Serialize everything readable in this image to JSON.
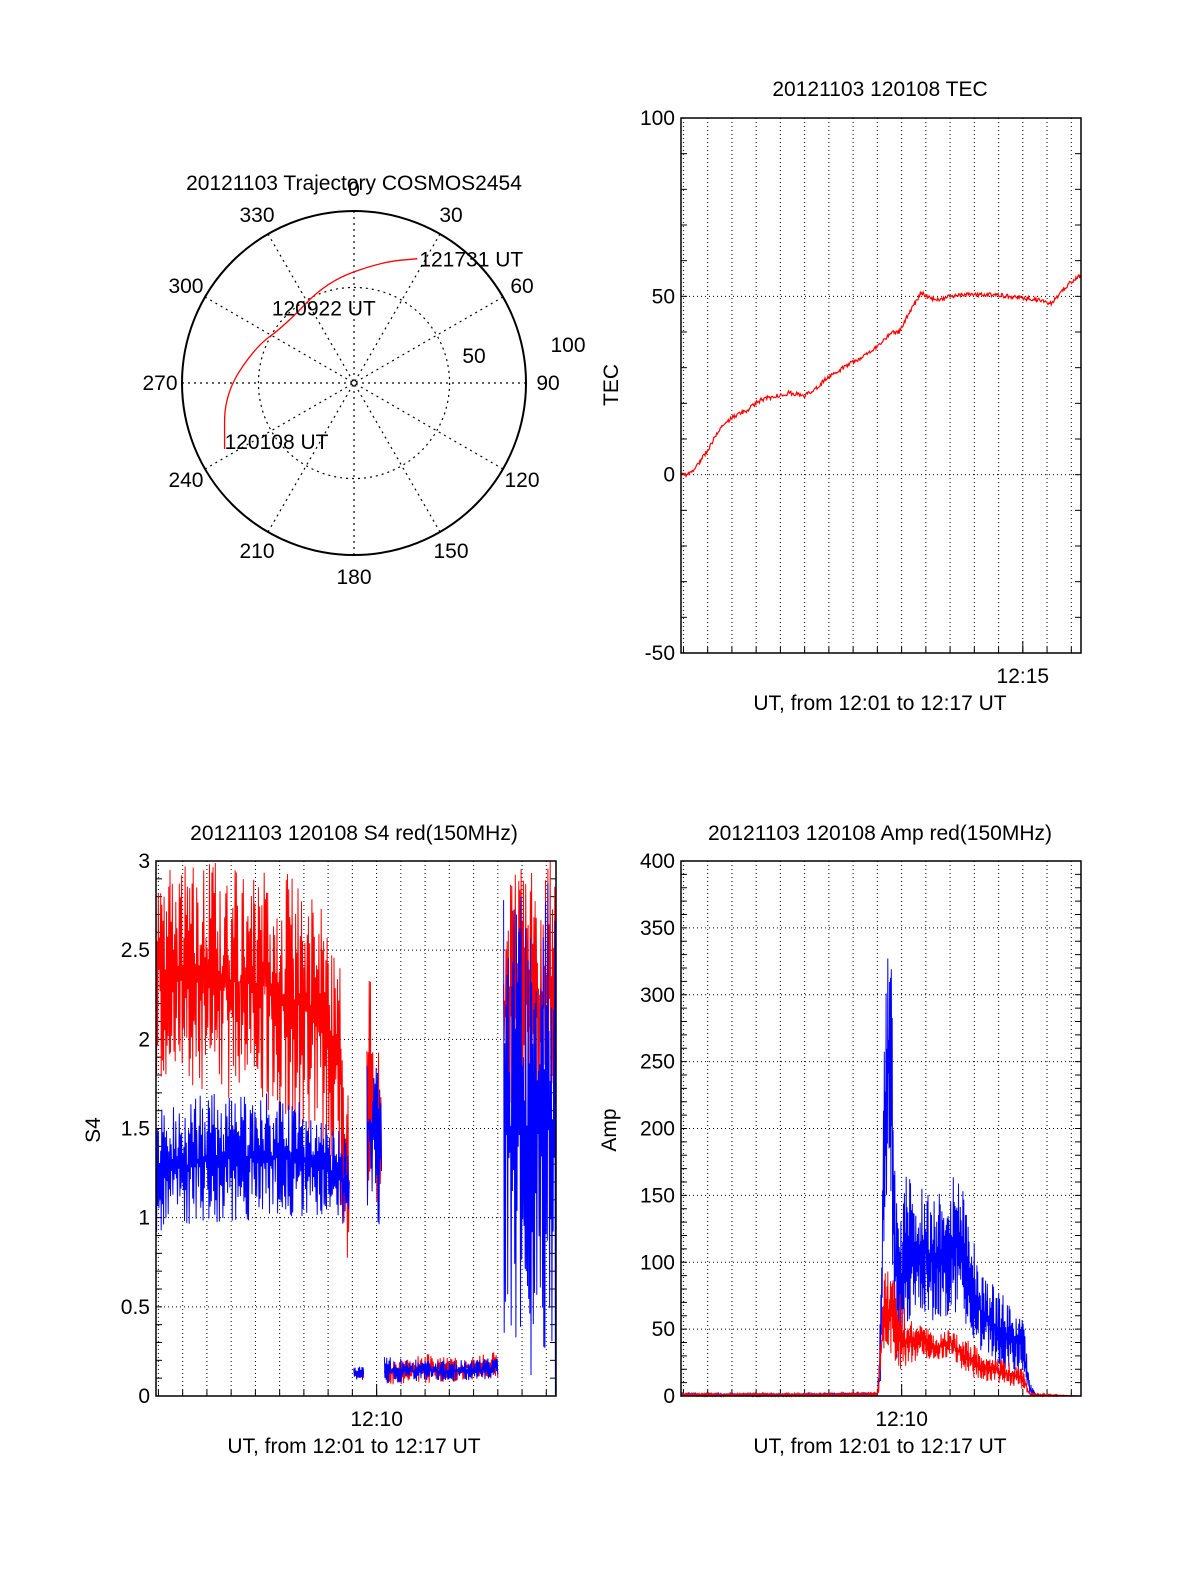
{
  "colors": {
    "red_series": "#ff0000",
    "blue_series": "#0000ff",
    "axis": "#000000",
    "grid": "#000000"
  },
  "chart_data": [
    {
      "id": "trajectory",
      "type": "polar",
      "title": "20121103 Trajectory COSMOS2454",
      "angle_ticks": [
        "0",
        "30",
        "60",
        "90",
        "120",
        "150",
        "180",
        "210",
        "240",
        "270",
        "300",
        "330"
      ],
      "radius_ticks": [
        "50",
        "100"
      ],
      "rlim": [
        0,
        90
      ],
      "grid": true,
      "series": [
        {
          "color": "red",
          "points": [
            [
              243,
              76
            ],
            [
              265,
              68
            ],
            [
              290,
              55
            ],
            [
              310,
              47
            ],
            [
              345,
              55
            ],
            [
              13,
              65
            ],
            [
              27,
              73
            ]
          ]
        }
      ],
      "annotations": [
        {
          "text": "121731 UT",
          "az": 27,
          "zd": 73
        },
        {
          "text": "120922 UT",
          "az": 340,
          "zd": 37
        },
        {
          "text": "120108 UT",
          "az": 243,
          "zd": 76
        }
      ]
    },
    {
      "id": "tec",
      "type": "line",
      "title": "20121103 120108 TEC",
      "xlabel": "UT, from 12:01 to 12:17 UT",
      "ylabel": "TEC",
      "xlim": [
        12.015,
        12.29
      ],
      "ylim": [
        -50,
        100
      ],
      "yticks": [
        "-50",
        "0",
        "50",
        "100"
      ],
      "xticks": [
        {
          "x": 12.25,
          "label": "12:15"
        }
      ],
      "minor_grid_step_min": 1,
      "grid": true,
      "series": [
        {
          "color": "red",
          "x": [
            12.015,
            12.02,
            12.025,
            12.03,
            12.035,
            12.04,
            12.05,
            12.06,
            12.07,
            12.08,
            12.09,
            12.1,
            12.11,
            12.115,
            12.12,
            12.13,
            12.14,
            12.15,
            12.16,
            12.162,
            12.165,
            12.17,
            12.18,
            12.19,
            12.2,
            12.21,
            12.22,
            12.23,
            12.24,
            12.25,
            12.26,
            12.27,
            12.28,
            12.29
          ],
          "y": [
            0,
            0,
            2,
            5,
            8,
            12,
            16,
            18,
            21,
            22,
            23,
            22,
            25,
            27,
            28,
            31,
            33,
            36,
            40,
            40,
            40,
            44,
            51,
            49,
            50,
            50.5,
            50.5,
            50.5,
            50,
            49.5,
            49,
            48,
            53,
            56
          ]
        }
      ]
    },
    {
      "id": "s4",
      "type": "line",
      "title": "20121103 120108 S4 red(150MHz)",
      "xlabel": "UT, from 12:01 to 12:17 UT",
      "ylabel": "S4",
      "xlim": [
        12.015,
        12.29
      ],
      "ylim": [
        0,
        3
      ],
      "yticks": [
        "0",
        "0.5",
        "1",
        "1.5",
        "2",
        "2.5",
        "3"
      ],
      "xticks": [
        {
          "x": 12.1667,
          "label": "12:10"
        }
      ],
      "minor_grid_step_min": 1,
      "grid": true,
      "series": [
        {
          "color": "red",
          "segments": [
            {
              "x": [
                12.015,
                12.05,
                12.09,
                12.12,
                12.14,
                12.148
              ],
              "y_low": [
                1.8,
                1.7,
                1.6,
                1.45,
                1.3,
                0.6
              ],
              "y_high": [
                3,
                3,
                3,
                2.9,
                2.6,
                1.6
              ]
            },
            {
              "x": [
                12.151,
                12.158
              ],
              "y_low": [
                0.1,
                0.1
              ],
              "y_high": [
                0.15,
                0.15
              ]
            },
            {
              "x": [
                12.16,
                12.163,
                12.166,
                12.17
              ],
              "y_low": [
                0.7,
                1.0,
                1.1,
                0.9
              ],
              "y_high": [
                2.6,
                2.3,
                2.1,
                1.8
              ]
            },
            {
              "x": [
                12.172,
                12.2,
                12.22,
                12.25
              ],
              "y_low": [
                0.06,
                0.07,
                0.08,
                0.1
              ],
              "y_high": [
                0.2,
                0.24,
                0.22,
                0.25
              ]
            },
            {
              "x": [
                12.254,
                12.26,
                12.27,
                12.28,
                12.29
              ],
              "y_low": [
                1.3,
                1.5,
                1.4,
                1.5,
                1.6
              ],
              "y_high": [
                3,
                3,
                3,
                3,
                3
              ]
            }
          ]
        },
        {
          "color": "blue",
          "segments": [
            {
              "x": [
                12.015,
                12.05,
                12.09,
                12.12,
                12.14,
                12.148
              ],
              "y_low": [
                0.9,
                0.95,
                1.0,
                1.0,
                0.95,
                0.9
              ],
              "y_high": [
                1.6,
                1.7,
                1.7,
                1.65,
                1.5,
                1.4
              ]
            },
            {
              "x": [
                12.151,
                12.158
              ],
              "y_low": [
                0.09,
                0.09
              ],
              "y_high": [
                0.18,
                0.16
              ]
            },
            {
              "x": [
                12.16,
                12.163,
                12.166,
                12.17
              ],
              "y_low": [
                0.9,
                1.0,
                1.0,
                0.9
              ],
              "y_high": [
                2.1,
                2.0,
                1.9,
                1.7
              ]
            },
            {
              "x": [
                12.172,
                12.2,
                12.22,
                12.25
              ],
              "y_low": [
                0.07,
                0.08,
                0.08,
                0.1
              ],
              "y_high": [
                0.22,
                0.2,
                0.2,
                0.22
              ]
            },
            {
              "x": [
                12.254,
                12.26,
                12.27,
                12.28,
                12.29
              ],
              "y_low": [
                0,
                0,
                0,
                0,
                0
              ],
              "y_high": [
                3,
                3,
                3,
                3,
                3
              ]
            }
          ]
        }
      ]
    },
    {
      "id": "amp",
      "type": "line",
      "title": "20121103 120108 Amp red(150MHz)",
      "xlabel": "UT, from 12:01 to 12:17 UT",
      "ylabel": "Amp",
      "xlim": [
        12.015,
        12.29
      ],
      "ylim": [
        0,
        400
      ],
      "yticks": [
        "0",
        "50",
        "100",
        "150",
        "200",
        "250",
        "300",
        "350",
        "400"
      ],
      "xticks": [
        {
          "x": 12.1667,
          "label": "12:10"
        }
      ],
      "minor_grid_step_min": 1,
      "grid": true,
      "series": [
        {
          "color": "blue",
          "x": [
            12.015,
            12.1,
            12.15,
            12.152,
            12.155,
            12.158,
            12.16,
            12.162,
            12.165,
            12.17,
            12.175,
            12.18,
            12.19,
            12.2,
            12.21,
            12.22,
            12.23,
            12.24,
            12.25,
            12.255,
            12.26,
            12.29
          ],
          "y_low": [
            0,
            0,
            0,
            5,
            120,
            170,
            80,
            0,
            30,
            45,
            70,
            60,
            55,
            55,
            55,
            35,
            20,
            20,
            15,
            0,
            0,
            0
          ],
          "y_high": [
            2,
            2,
            3,
            60,
            280,
            350,
            320,
            200,
            120,
            175,
            150,
            160,
            150,
            175,
            160,
            95,
            85,
            70,
            60,
            10,
            0,
            0
          ]
        },
        {
          "color": "red",
          "x": [
            12.015,
            12.1,
            12.15,
            12.152,
            12.155,
            12.16,
            12.165,
            12.17,
            12.18,
            12.19,
            12.2,
            12.21,
            12.22,
            12.23,
            12.24,
            12.25,
            12.255,
            12.29
          ],
          "y_low": [
            0,
            0,
            0,
            5,
            40,
            30,
            15,
            20,
            30,
            25,
            30,
            15,
            12,
            10,
            8,
            5,
            0,
            0
          ],
          "y_high": [
            2,
            2,
            3,
            40,
            100,
            90,
            80,
            60,
            55,
            45,
            50,
            45,
            35,
            30,
            25,
            20,
            2,
            0
          ]
        }
      ]
    }
  ]
}
